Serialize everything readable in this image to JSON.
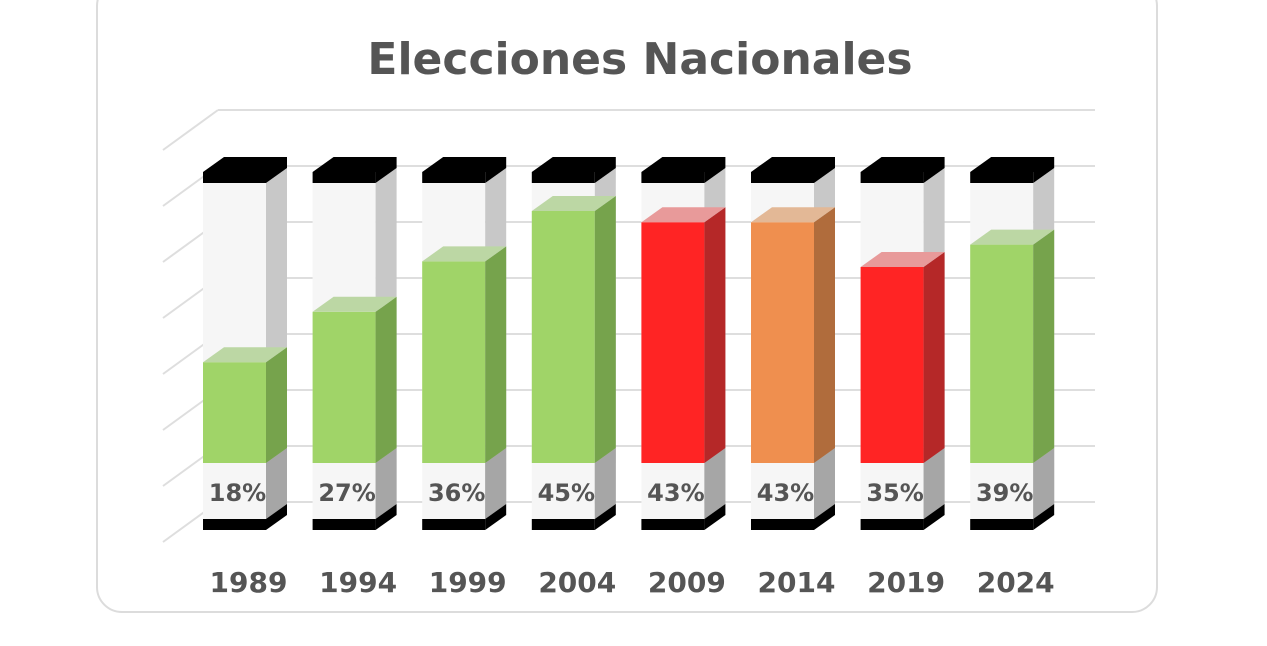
{
  "chart_data": {
    "type": "bar",
    "title": "Elecciones Nacionales",
    "categories": [
      "1989",
      "1994",
      "1999",
      "2004",
      "2009",
      "2014",
      "2019",
      "2024"
    ],
    "values": [
      18,
      27,
      36,
      45,
      43,
      43,
      35,
      39
    ],
    "labels": [
      "18%",
      "27%",
      "36%",
      "45%",
      "43%",
      "43%",
      "35%",
      "39%"
    ],
    "colors": [
      "green",
      "green",
      "green",
      "green",
      "red",
      "orange",
      "red",
      "green"
    ],
    "ylim": [
      0,
      50
    ],
    "grid": true,
    "style": "3d"
  },
  "palette": {
    "green": {
      "front": "#a0d468",
      "side": "#76a34c",
      "top": "#bcd7a4"
    },
    "red": {
      "front": "#ff2424",
      "side": "#b52828",
      "top": "#e89a9a"
    },
    "orange": {
      "front": "#ef8f4f",
      "side": "#b06c3c",
      "top": "#e3b896"
    }
  }
}
